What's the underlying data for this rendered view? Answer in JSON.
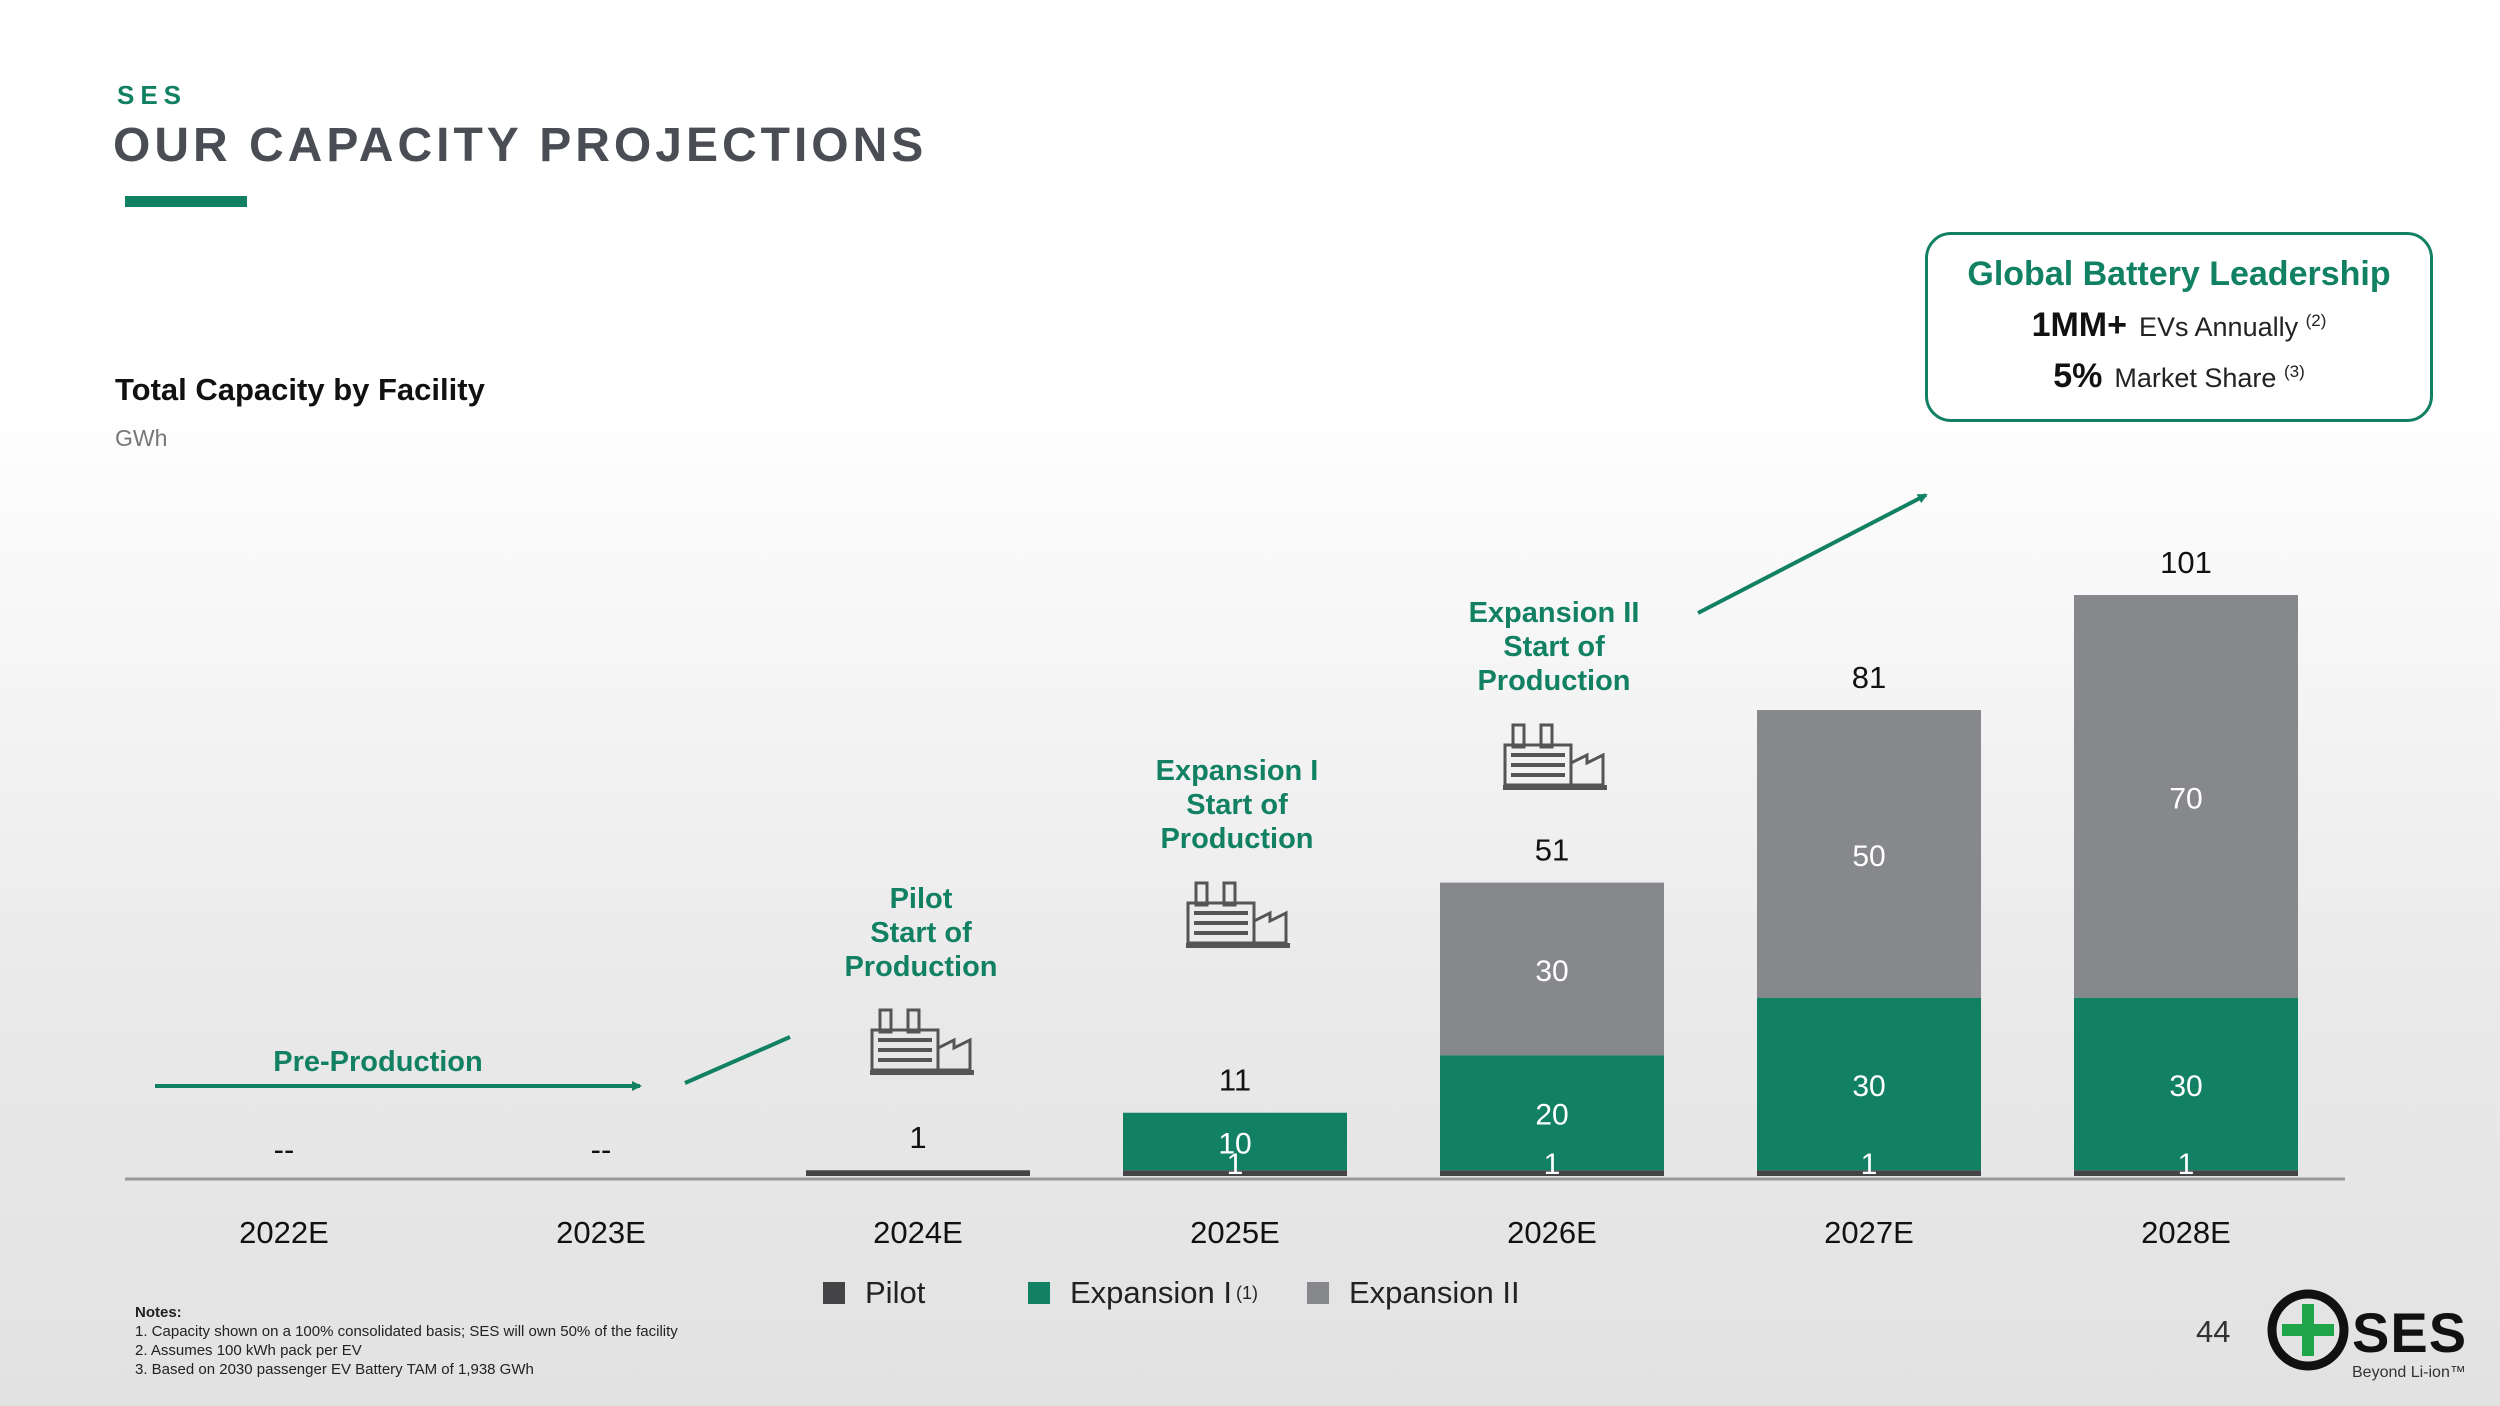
{
  "header": {
    "kicker": "SES",
    "title": "OUR CAPACITY PROJECTIONS"
  },
  "chart_header": {
    "title": "Total Capacity by Facility",
    "unit": "GWh"
  },
  "callout": {
    "title": "Global Battery Leadership",
    "rows": [
      {
        "value": "1MM+",
        "label": "EVs Annually",
        "note": "(2)"
      },
      {
        "value": "5%",
        "label": "Market Share",
        "note": "(3)"
      }
    ]
  },
  "annotations": {
    "pre_production": "Pre-Production",
    "pilot": [
      "Pilot",
      "Start of",
      "Production"
    ],
    "expansion_1": [
      "Expansion I",
      "Start of",
      "Production"
    ],
    "expansion_2": [
      "Expansion II",
      "Start of",
      "Production"
    ]
  },
  "colors": {
    "pilot": "#444446",
    "expansion_1": "#128163",
    "expansion_2": "#87888b",
    "accent": "#128163"
  },
  "chart_data": {
    "type": "bar",
    "stacked": true,
    "title": "Total Capacity by Facility",
    "ylabel": "GWh",
    "categories": [
      "2022E",
      "2023E",
      "2024E",
      "2025E",
      "2026E",
      "2027E",
      "2028E"
    ],
    "series": [
      {
        "name": "Pilot",
        "values": [
          null,
          null,
          1,
          1,
          1,
          1,
          1
        ]
      },
      {
        "name": "Expansion I",
        "values": [
          null,
          null,
          null,
          10,
          20,
          30,
          30
        ]
      },
      {
        "name": "Expansion II",
        "values": [
          null,
          null,
          null,
          null,
          30,
          50,
          70
        ]
      }
    ],
    "totals": [
      "--",
      "--",
      "1",
      "11",
      "51",
      "81",
      "101"
    ],
    "segment_labels": [
      [
        null,
        null,
        null
      ],
      [
        null,
        null,
        null
      ],
      [
        null,
        null,
        null
      ],
      [
        "1",
        "10",
        null
      ],
      [
        "1",
        "20",
        "30"
      ],
      [
        "1",
        "30",
        "50"
      ],
      [
        "1",
        "30",
        "70"
      ]
    ],
    "ylim": [
      0,
      101
    ]
  },
  "legend": {
    "items": [
      {
        "label": "Pilot",
        "note": ""
      },
      {
        "label": "Expansion I",
        "note": "(1)"
      },
      {
        "label": "Expansion II",
        "note": ""
      }
    ]
  },
  "notes": {
    "title": "Notes:",
    "items": [
      "1.  Capacity shown on a 100% consolidated basis; SES will own 50% of the facility",
      "2.  Assumes 100 kWh pack per EV",
      "3.  Based on 2030 passenger EV Battery TAM of 1,938 GWh"
    ]
  },
  "footer": {
    "page_number": "44",
    "logo_text": "SES",
    "logo_tagline": "Beyond Li-ion™"
  }
}
